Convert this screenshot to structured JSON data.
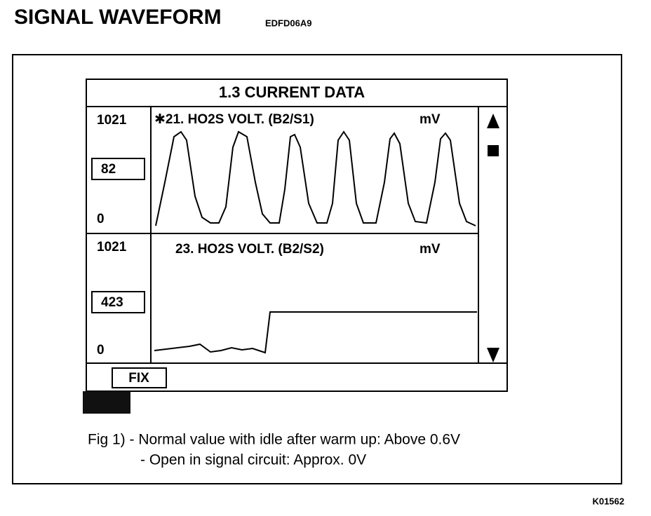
{
  "header": {
    "title": "SIGNAL WAVEFORM",
    "code": "EDFD06A9"
  },
  "screen": {
    "title": "1.3 CURRENT DATA",
    "panels": [
      {
        "max": "1021",
        "current": "82",
        "min": "0",
        "label": "✱21. HO2S  VOLT. (B2/S1)",
        "unit": "mV"
      },
      {
        "max": "1021",
        "current": "423",
        "min": "0",
        "label": "23. HO2S  VOLT. (B2/S2)",
        "unit": "mV"
      }
    ],
    "button": "FIX"
  },
  "caption": [
    "Fig 1) - Normal value with idle after warm up: Above 0.6V",
    "- Open in signal circuit: Approx. 0V"
  ],
  "footer": {
    "code": "K01562"
  }
}
